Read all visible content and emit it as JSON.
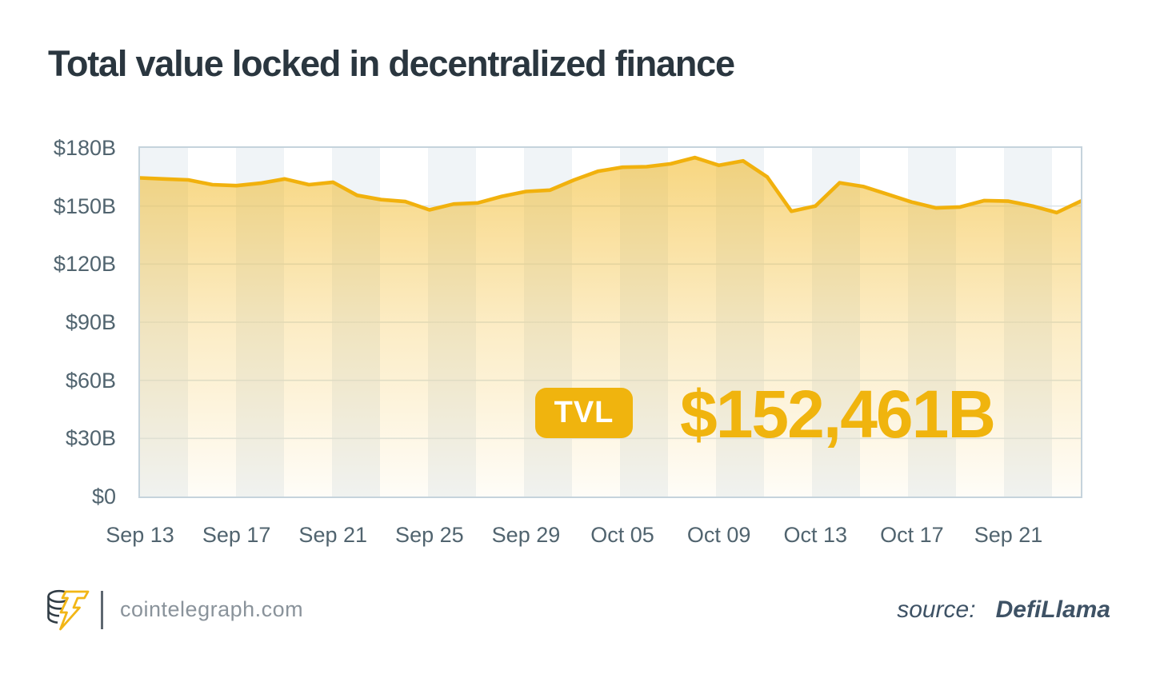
{
  "title": "Total value locked in decentralized finance",
  "chart_data": {
    "type": "area",
    "title": "Total value locked in decentralized finance",
    "xlabel": "",
    "ylabel": "",
    "ylim": [
      0,
      180
    ],
    "grid": true,
    "y_ticks": [
      {
        "label": "$180B",
        "value": 180
      },
      {
        "label": "$150B",
        "value": 150
      },
      {
        "label": "$120B",
        "value": 120
      },
      {
        "label": "$90B",
        "value": 90
      },
      {
        "label": "$60B",
        "value": 60
      },
      {
        "label": "$30B",
        "value": 30
      },
      {
        "label": "$0",
        "value": 0
      }
    ],
    "x_ticks": [
      {
        "label": "Sep 13",
        "index": 0
      },
      {
        "label": "Sep 17",
        "index": 4
      },
      {
        "label": "Sep 21",
        "index": 8
      },
      {
        "label": "Sep 25",
        "index": 12
      },
      {
        "label": "Sep 29",
        "index": 16
      },
      {
        "label": "Oct 05",
        "index": 20
      },
      {
        "label": "Oct 09",
        "index": 24
      },
      {
        "label": "Oct 13",
        "index": 28
      },
      {
        "label": "Oct 17",
        "index": 32
      },
      {
        "label": "Sep 21",
        "index": 36
      }
    ],
    "series": [
      {
        "name": "TVL ($B)",
        "values": [
          164.5,
          164.0,
          163.5,
          161.0,
          160.5,
          161.8,
          164.0,
          161.0,
          162.3,
          155.5,
          153.3,
          152.3,
          148.0,
          151.0,
          151.6,
          155.0,
          157.5,
          158.2,
          163.5,
          168.0,
          170.0,
          170.3,
          171.8,
          175.0,
          171.0,
          173.3,
          165.0,
          147.3,
          150.0,
          162.0,
          160.0,
          156.0,
          152.0,
          149.0,
          149.5,
          152.8,
          152.5,
          150.0,
          146.6,
          152.5
        ]
      }
    ],
    "line_color": "#f1b10d",
    "gridline_color": "#dde6eb"
  },
  "overlay": {
    "badge_label": "TVL",
    "value": "$152,461B"
  },
  "footer": {
    "site": "cointelegraph.com",
    "source_prefix": "source:",
    "source_name": "DefiLlama"
  },
  "colors": {
    "accent_gold": "#f0b40e",
    "title_text": "#2a363f",
    "axis_text": "#51646f",
    "plot_border": "#c5d3dc",
    "stripe": "#f0f4f7",
    "footer_text": "#8a939b",
    "source_text": "#3e5265"
  }
}
